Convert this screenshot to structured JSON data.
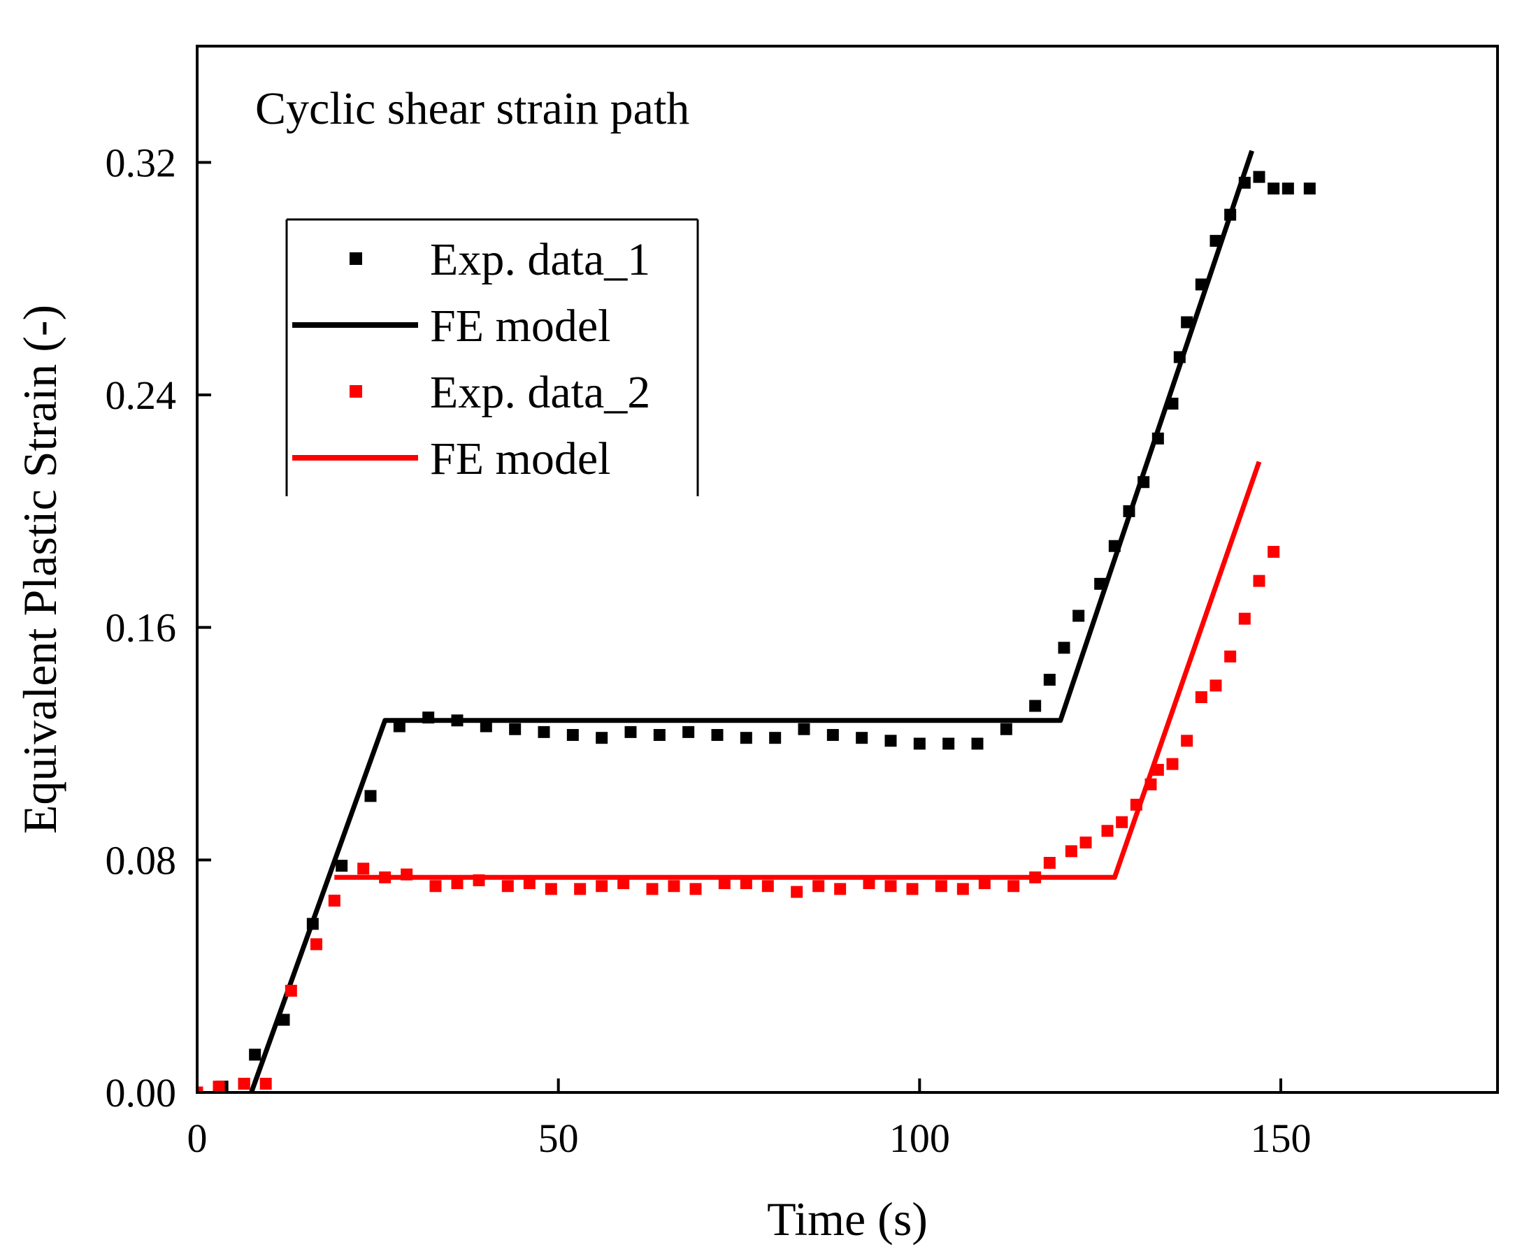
{
  "chart_data": {
    "type": "scatter",
    "title": "",
    "annotation": "Cyclic shear strain path",
    "xlabel": "Time (s)",
    "ylabel": "Equivalent Plastic Strain (-)",
    "xlim": [
      0,
      180
    ],
    "ylim": [
      0,
      0.36
    ],
    "xticks": [
      0,
      50,
      100,
      150
    ],
    "yticks": [
      0.0,
      0.08,
      0.16,
      0.24,
      0.32
    ],
    "xtick_labels": [
      "0",
      "50",
      "100",
      "150"
    ],
    "ytick_labels": [
      "0.00",
      "0.08",
      "0.16",
      "0.24",
      "0.32"
    ],
    "grid": false,
    "legend_position": "upper-left",
    "series": [
      {
        "name": "Exp. data_1",
        "kind": "scatter",
        "color": "#000000",
        "x": [
          0,
          3.5,
          6.5,
          8,
          12,
          16,
          20,
          24,
          28,
          32,
          36,
          40,
          44,
          48,
          52,
          56,
          60,
          64,
          68,
          72,
          76,
          80,
          84,
          88,
          92,
          96,
          100,
          104,
          108,
          112,
          116,
          118,
          120,
          122,
          125,
          127,
          129,
          131,
          133,
          135,
          136,
          137,
          139,
          141,
          143,
          145,
          147,
          149,
          151,
          154
        ],
        "y": [
          0,
          0.002,
          0.003,
          0.013,
          0.025,
          0.058,
          0.078,
          0.102,
          0.126,
          0.129,
          0.128,
          0.126,
          0.125,
          0.124,
          0.123,
          0.122,
          0.124,
          0.123,
          0.124,
          0.123,
          0.122,
          0.122,
          0.125,
          0.123,
          0.122,
          0.121,
          0.12,
          0.12,
          0.12,
          0.125,
          0.133,
          0.142,
          0.153,
          0.164,
          0.175,
          0.188,
          0.2,
          0.21,
          0.225,
          0.237,
          0.253,
          0.265,
          0.278,
          0.293,
          0.302,
          0.313,
          0.315,
          0.311,
          0.311,
          0.311
        ]
      },
      {
        "name": "FE model",
        "kind": "line",
        "color": "#000000",
        "x": [
          7.5,
          26,
          119.5,
          146
        ],
        "y": [
          0,
          0.128,
          0.128,
          0.324
        ]
      },
      {
        "name": "Exp. data_2",
        "kind": "scatter",
        "color": "#ff0000",
        "x": [
          0,
          3,
          6.5,
          9.5,
          13,
          16.5,
          19,
          23,
          26,
          29,
          33,
          36,
          39,
          43,
          46,
          49,
          53,
          56,
          59,
          63,
          66,
          69,
          73,
          76,
          79,
          83,
          86,
          89,
          93,
          96,
          99,
          103,
          106,
          109,
          113,
          116,
          118,
          121,
          123,
          126,
          128,
          130,
          132,
          133,
          135,
          137,
          139,
          141,
          143,
          145,
          147,
          149
        ],
        "y": [
          0,
          0.002,
          0.003,
          0.003,
          0.035,
          0.051,
          0.066,
          0.077,
          0.074,
          0.075,
          0.071,
          0.072,
          0.073,
          0.071,
          0.072,
          0.07,
          0.07,
          0.071,
          0.072,
          0.07,
          0.071,
          0.07,
          0.072,
          0.072,
          0.071,
          0.069,
          0.071,
          0.07,
          0.072,
          0.071,
          0.07,
          0.071,
          0.07,
          0.072,
          0.071,
          0.074,
          0.079,
          0.083,
          0.086,
          0.09,
          0.093,
          0.099,
          0.106,
          0.111,
          0.113,
          0.121,
          0.136,
          0.14,
          0.15,
          0.163,
          0.176,
          0.186
        ]
      },
      {
        "name": "FE model",
        "kind": "line",
        "color": "#ff0000",
        "x": [
          19,
          127,
          147
        ],
        "y": [
          0.074,
          0.074,
          0.217
        ]
      }
    ]
  }
}
